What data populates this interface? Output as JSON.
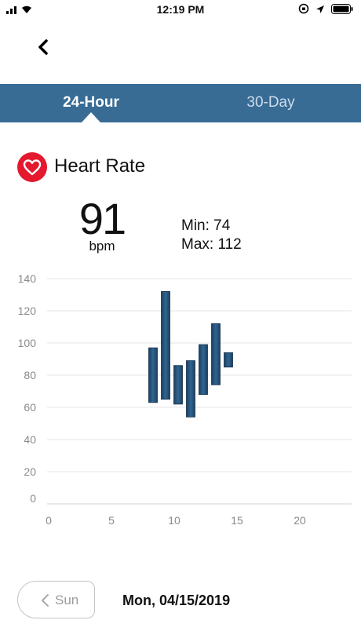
{
  "status_bar": {
    "time": "12:19 PM"
  },
  "tabs": {
    "active": "24-Hour",
    "inactive": "30-Day"
  },
  "metric": {
    "title": "Heart Rate",
    "value": "91",
    "unit": "bpm",
    "min": "Min: 74",
    "max": "Max: 112"
  },
  "navigation": {
    "prev_label": "Sun",
    "date": "Mon, 04/15/2019"
  },
  "colors": {
    "tab_bar": "#386c95",
    "heart": "#e4182e",
    "bar": "#25507a"
  },
  "chart_data": {
    "type": "bar",
    "subtype": "floating-range",
    "x_ticks": [
      0,
      5,
      10,
      15,
      20
    ],
    "y_ticks": [
      0,
      20,
      40,
      60,
      80,
      100,
      120,
      140
    ],
    "xlim": [
      0,
      24
    ],
    "ylim": [
      0,
      140
    ],
    "grid": true,
    "bars": [
      {
        "x": 8,
        "low": 63,
        "high": 97
      },
      {
        "x": 9,
        "low": 65,
        "high": 132
      },
      {
        "x": 10,
        "low": 62,
        "high": 86
      },
      {
        "x": 11,
        "low": 54,
        "high": 89
      },
      {
        "x": 12,
        "low": 68,
        "high": 99
      },
      {
        "x": 13,
        "low": 74,
        "high": 112
      },
      {
        "x": 14,
        "low": 85,
        "high": 94
      }
    ]
  }
}
